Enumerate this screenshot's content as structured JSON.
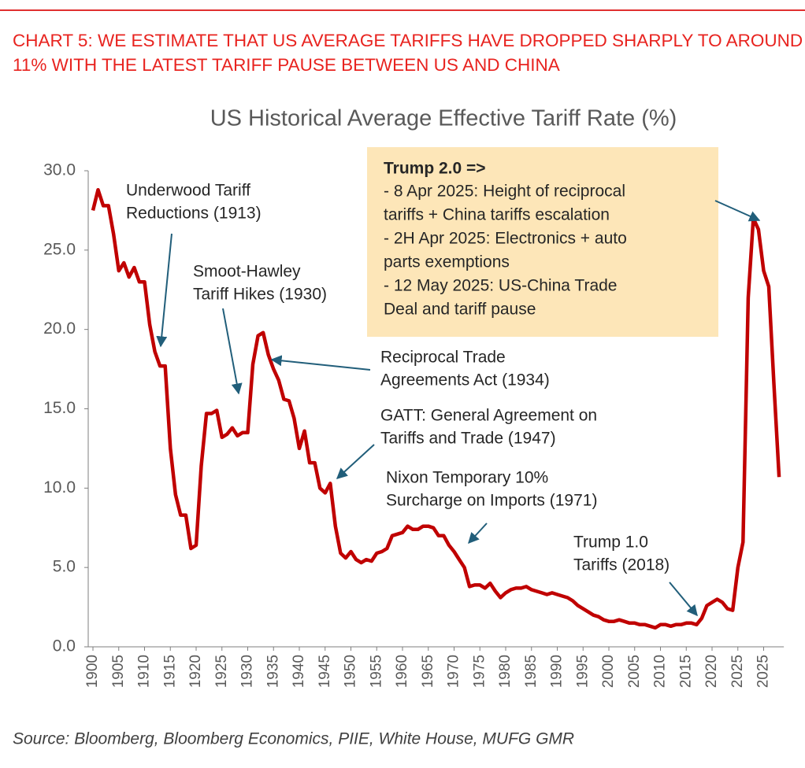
{
  "chart_data": {
    "type": "line",
    "title": "CHART 5: WE ESTIMATE THAT US AVERAGE TARIFFS HAVE DROPPED SHARPLY TO AROUND 11% WITH THE LATEST TARIFF PAUSE BETWEEN US AND CHINA",
    "subtitle": "US Historical Average Effective Tariff Rate (%)",
    "source": "Source: Bloomberg, Bloomberg Economics, PIIE, White House, MUFG GMR",
    "color": "#c00000",
    "categories": [
      "1900",
      null,
      null,
      null,
      null,
      "1905",
      null,
      null,
      null,
      null,
      "1910",
      null,
      null,
      null,
      null,
      "1915",
      null,
      null,
      null,
      null,
      "1920",
      null,
      null,
      null,
      null,
      "1925",
      null,
      null,
      null,
      null,
      "1930",
      null,
      null,
      null,
      null,
      "1935",
      null,
      null,
      null,
      null,
      "1940",
      null,
      null,
      null,
      null,
      "1945",
      null,
      null,
      null,
      null,
      "1950",
      null,
      null,
      null,
      null,
      "1955",
      null,
      null,
      null,
      null,
      "1960",
      null,
      null,
      null,
      null,
      "1965",
      null,
      null,
      null,
      null,
      "1970",
      null,
      null,
      null,
      null,
      "1975",
      null,
      null,
      null,
      null,
      "1980",
      null,
      null,
      null,
      null,
      "1985",
      null,
      null,
      null,
      null,
      "1990",
      null,
      null,
      null,
      null,
      "1995",
      null,
      null,
      null,
      null,
      "2000",
      null,
      null,
      null,
      null,
      "2005",
      null,
      null,
      null,
      null,
      "2010",
      null,
      null,
      null,
      null,
      "2015",
      null,
      null,
      null,
      null,
      "2020",
      null,
      null,
      null,
      null,
      "2025",
      null,
      null,
      null,
      null,
      "2025",
      null,
      null,
      null
    ],
    "values": [
      27.5,
      28.8,
      27.8,
      27.8,
      26.0,
      23.7,
      24.2,
      23.3,
      23.9,
      23.0,
      23.0,
      20.3,
      18.6,
      17.7,
      17.7,
      12.5,
      9.6,
      8.3,
      8.3,
      6.2,
      6.4,
      11.4,
      14.7,
      14.7,
      14.9,
      13.2,
      13.4,
      13.8,
      13.3,
      13.5,
      13.5,
      17.8,
      19.6,
      19.8,
      18.4,
      17.5,
      16.8,
      15.6,
      15.5,
      14.4,
      12.5,
      13.6,
      11.6,
      11.6,
      10.0,
      9.7,
      10.3,
      7.6,
      5.9,
      5.6,
      6.0,
      5.5,
      5.3,
      5.5,
      5.4,
      5.9,
      6.0,
      6.2,
      7.0,
      7.1,
      7.2,
      7.6,
      7.4,
      7.4,
      7.6,
      7.6,
      7.5,
      7.0,
      7.0,
      6.4,
      6.0,
      5.5,
      5.0,
      3.8,
      3.9,
      3.9,
      3.7,
      4.0,
      3.5,
      3.1,
      3.4,
      3.6,
      3.7,
      3.7,
      3.8,
      3.6,
      3.5,
      3.4,
      3.3,
      3.4,
      3.3,
      3.2,
      3.1,
      2.9,
      2.6,
      2.4,
      2.2,
      2.0,
      1.9,
      1.7,
      1.6,
      1.6,
      1.7,
      1.6,
      1.5,
      1.5,
      1.4,
      1.4,
      1.3,
      1.2,
      1.4,
      1.4,
      1.3,
      1.4,
      1.4,
      1.5,
      1.5,
      1.4,
      1.8,
      2.6,
      2.8,
      3.0,
      2.8,
      2.4,
      2.3,
      5.0,
      6.6,
      22.0,
      27.0,
      26.3,
      23.7,
      22.7,
      16.5,
      10.7
    ],
    "ylim": [
      0,
      30
    ],
    "yticks": [
      {
        "value": 0,
        "label": "0.0"
      },
      {
        "value": 5,
        "label": "5.0"
      },
      {
        "value": 10,
        "label": "10.0"
      },
      {
        "value": 15,
        "label": "15.0"
      },
      {
        "value": 20,
        "label": "20.0"
      },
      {
        "value": 25,
        "label": "25.0"
      },
      {
        "value": 30,
        "label": "30.0"
      }
    ],
    "annotations": [
      {
        "lines": [
          "Underwood Tariff",
          "Reductions (1913)"
        ]
      },
      {
        "lines": [
          "Smoot-Hawley",
          "Tariff Hikes (1930)"
        ]
      },
      {
        "lines": [
          "Reciprocal Trade",
          "Agreements Act (1934)"
        ]
      },
      {
        "lines": [
          "GATT: General Agreement on",
          "Tariffs and Trade (1947)"
        ]
      },
      {
        "lines": [
          "Nixon Temporary 10%",
          "Surcharge on Imports (1971)"
        ]
      },
      {
        "lines": [
          "Trump 1.0",
          "Tariffs (2018)"
        ]
      }
    ],
    "callout": {
      "title": "Trump 2.0 =>",
      "lines": [
        "- 8 Apr 2025: Height of reciprocal",
        "tariffs + China tariffs escalation",
        "- 2H Apr 2025: Electronics + auto",
        "parts exemptions",
        "- 12 May 2025: US-China Trade",
        "Deal and tariff pause"
      ]
    }
  }
}
